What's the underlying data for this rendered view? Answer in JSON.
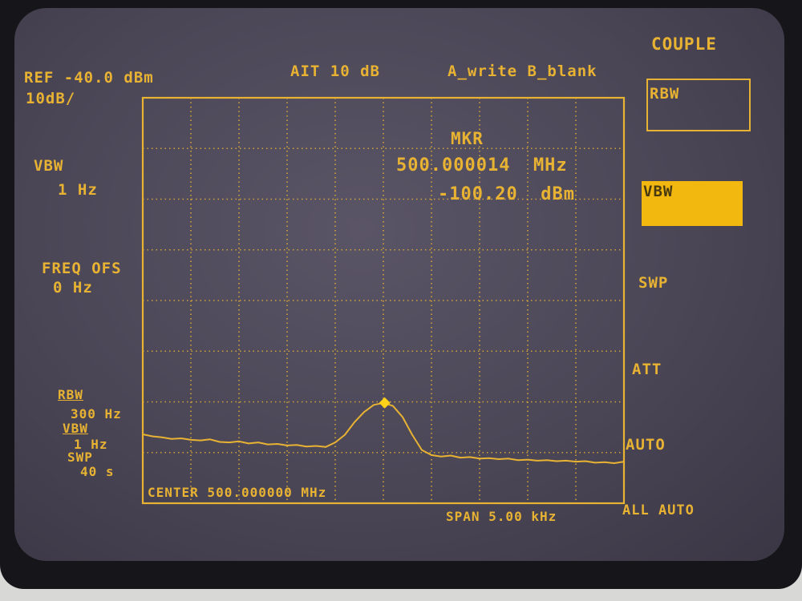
{
  "header": {
    "ref_level": "REF -40.0 dBm",
    "scale": "10dB/",
    "attenuation": "AIT 10 dB",
    "trace_mode": "A_write B_blank"
  },
  "left_panel": {
    "vbw_label": "VBW",
    "vbw_value": "1 Hz",
    "freq_ofs_label": "FREQ OFS",
    "freq_ofs_value": "0 Hz",
    "rbw_label": "RBW",
    "rbw_value": "300 Hz",
    "vbw2_label": "VBW",
    "vbw2_value": "1 Hz",
    "swp_label": "SWP",
    "swp_value": "40 s"
  },
  "marker": {
    "label": "MKR",
    "frequency": "500.000014  MHz",
    "amplitude": "-100.20  dBm"
  },
  "footer": {
    "center": "CENTER 500.000000 MHz",
    "span": "SPAN 5.00 kHz"
  },
  "softkeys": {
    "title": "COUPLE",
    "items": [
      {
        "label": "RBW",
        "state": "boxed"
      },
      {
        "label": "VBW",
        "state": "highlighted"
      },
      {
        "label": "SWP",
        "state": "normal"
      },
      {
        "label": "ATT",
        "state": "normal"
      },
      {
        "label": "AUTO",
        "state": "normal"
      },
      {
        "label": "ALL AUTO",
        "state": "normal"
      }
    ]
  },
  "colors": {
    "trace": "#e8b233",
    "highlight": "#f2b80f",
    "screen": "#4a4656"
  },
  "chart_data": {
    "type": "line",
    "xlabel": "",
    "ylabel": "",
    "xlim": [
      499.9975,
      500.0025
    ],
    "ylim": [
      -120,
      -40
    ],
    "x_divisions": 10,
    "y_divisions": 8,
    "grid": true,
    "x": [
      499.9975,
      499.9976,
      499.9977,
      499.9978,
      499.9979,
      499.998,
      499.9981,
      499.9982,
      499.9983,
      499.9984,
      499.9985,
      499.9986,
      499.9987,
      499.9988,
      499.9989,
      499.999,
      499.9991,
      499.9992,
      499.9993,
      499.9994,
      499.9995,
      499.9996,
      499.9997,
      499.9998,
      499.9999,
      500.0,
      500.0001,
      500.0002,
      500.0003,
      500.0004,
      500.0005,
      500.0006,
      500.0007,
      500.0008,
      500.0009,
      500.001,
      500.0011,
      500.0012,
      500.0013,
      500.0014,
      500.0015,
      500.0016,
      500.0017,
      500.0018,
      500.0019,
      500.002,
      500.0021,
      500.0022,
      500.0023,
      500.0024,
      500.0025
    ],
    "y": [
      -106.4,
      -106.8,
      -107.0,
      -107.3,
      -107.2,
      -107.5,
      -107.6,
      -107.4,
      -107.9,
      -108.0,
      -107.8,
      -108.2,
      -108.0,
      -108.4,
      -108.3,
      -108.6,
      -108.5,
      -108.8,
      -108.7,
      -108.9,
      -108.0,
      -106.5,
      -104.0,
      -102.0,
      -100.6,
      -100.2,
      -100.8,
      -103.0,
      -106.5,
      -109.5,
      -110.5,
      -110.8,
      -110.6,
      -111.0,
      -110.9,
      -111.2,
      -111.1,
      -111.3,
      -111.2,
      -111.5,
      -111.4,
      -111.6,
      -111.5,
      -111.7,
      -111.6,
      -111.8,
      -111.7,
      -112.0,
      -111.9,
      -112.1,
      -111.8
    ],
    "marker": {
      "x": 500.000014,
      "y": -100.2
    }
  }
}
